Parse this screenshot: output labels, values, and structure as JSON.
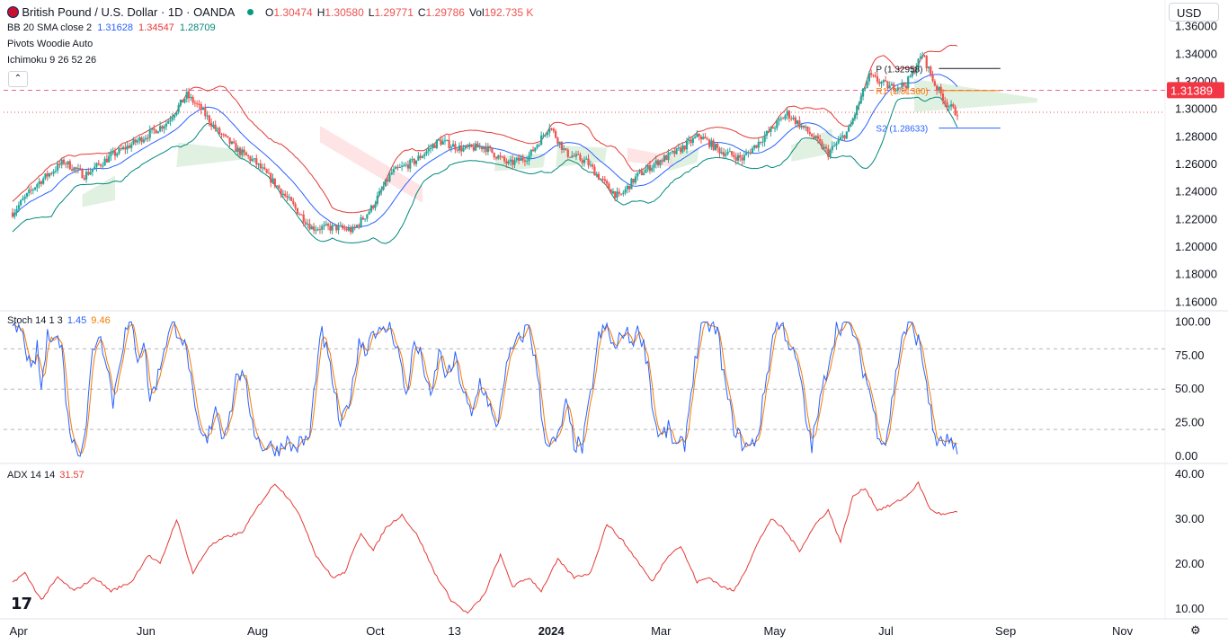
{
  "header": {
    "symbol": "British Pound / U.S. Dollar · 1D · OANDA",
    "ohlc": [
      {
        "k": "O",
        "v": "1.30474"
      },
      {
        "k": "H",
        "v": "1.30580"
      },
      {
        "k": "L",
        "v": "1.29771"
      },
      {
        "k": "C",
        "v": "1.29786"
      },
      {
        "k": "Vol",
        "v": "192.735 K"
      }
    ],
    "currency": "USD",
    "indicators": [
      {
        "label": "BB 20 SMA close 2",
        "values": [
          "1.31628",
          "1.34547",
          "1.28709"
        ],
        "colors": [
          "#2962ff",
          "#e53935",
          "#00897b"
        ]
      },
      {
        "label": "Pivots Woodie Auto",
        "values": [],
        "colors": []
      },
      {
        "label": "Ichimoku 9 26 52 26",
        "values": [],
        "colors": []
      }
    ]
  },
  "colors": {
    "up": "#26a69a",
    "down": "#ef5350",
    "basis": "#2962ff",
    "upper": "#e53935",
    "lower": "#00897b",
    "stoch_k": "#2962ff",
    "stoch_d": "#f57c00",
    "adx": "#e53935",
    "price_tag": "#f23645",
    "cloud_bull": "#c8e6c9",
    "cloud_bear": "#ffcdd2",
    "grid": "#b2b5be",
    "axis_text": "#131722"
  },
  "chart_data": [
    {
      "type": "candlestick",
      "title": "British Pound / U.S. Dollar · 1D · OANDA",
      "ylim": [
        1.155,
        1.365
      ],
      "yticks": [
        "1.16000",
        "1.18000",
        "1.20000",
        "1.22000",
        "1.24000",
        "1.26000",
        "1.28000",
        "1.30000",
        "1.32000",
        "1.34000",
        "1.36000"
      ],
      "anchors": [
        [
          0,
          1.225
        ],
        [
          12,
          1.246
        ],
        [
          25,
          1.262
        ],
        [
          35,
          1.252
        ],
        [
          48,
          1.266
        ],
        [
          62,
          1.278
        ],
        [
          75,
          1.29
        ],
        [
          85,
          1.31
        ],
        [
          92,
          1.3
        ],
        [
          100,
          1.284
        ],
        [
          110,
          1.27
        ],
        [
          118,
          1.262
        ],
        [
          128,
          1.246
        ],
        [
          138,
          1.228
        ],
        [
          146,
          1.214
        ],
        [
          158,
          1.214
        ],
        [
          166,
          1.212
        ],
        [
          175,
          1.228
        ],
        [
          185,
          1.254
        ],
        [
          196,
          1.262
        ],
        [
          208,
          1.277
        ],
        [
          220,
          1.271
        ],
        [
          230,
          1.273
        ],
        [
          242,
          1.26
        ],
        [
          252,
          1.266
        ],
        [
          262,
          1.288
        ],
        [
          270,
          1.268
        ],
        [
          280,
          1.262
        ],
        [
          290,
          1.244
        ],
        [
          296,
          1.236
        ],
        [
          305,
          1.252
        ],
        [
          315,
          1.262
        ],
        [
          325,
          1.27
        ],
        [
          335,
          1.281
        ],
        [
          345,
          1.27
        ],
        [
          356,
          1.264
        ],
        [
          368,
          1.282
        ],
        [
          378,
          1.297
        ],
        [
          390,
          1.281
        ],
        [
          398,
          1.268
        ],
        [
          408,
          1.285
        ],
        [
          418,
          1.324
        ],
        [
          428,
          1.316
        ],
        [
          436,
          1.318
        ],
        [
          444,
          1.34
        ],
        [
          450,
          1.318
        ],
        [
          456,
          1.304
        ],
        [
          460,
          1.298
        ]
      ],
      "ichimoku_cloud": {
        "bull": [
          [
            [
              34,
              50
            ],
            [
              1.229,
              1.234
            ],
            [
              1.238,
              1.252
            ]
          ],
          [
            [
              80,
              115
            ],
            [
              1.258,
              1.264
            ],
            [
              1.276,
              1.27
            ]
          ],
          [
            [
              235,
              260
            ],
            [
              1.255,
              1.258
            ],
            [
              1.266,
              1.268
            ]
          ],
          [
            [
              265,
              290
            ],
            [
              1.258,
              1.262
            ],
            [
              1.274,
              1.272
            ]
          ],
          [
            [
              320,
              335
            ],
            [
              1.255,
              1.262
            ],
            [
              1.266,
              1.272
            ]
          ],
          [
            [
              380,
              400
            ],
            [
              1.262,
              1.268
            ],
            [
              1.274,
              1.286
            ]
          ],
          [
            [
              440,
              500
            ],
            [
              1.298,
              1.305
            ],
            [
              1.322,
              1.308
            ]
          ]
        ],
        "bear": [
          [
            [
              150,
              200
            ],
            [
              1.276,
              1.232
            ],
            [
              1.288,
              1.244
            ]
          ],
          [
            [
              300,
              322
            ],
            [
              1.262,
              1.258
            ],
            [
              1.272,
              1.266
            ]
          ]
        ]
      },
      "pivots": [
        {
          "label": "P (1.32958)",
          "value": 1.32958,
          "color": "#131722"
        },
        {
          "label": "R1 (1.31360)",
          "value": 1.3136,
          "color": "#f57c00"
        },
        {
          "label": "S2 (1.28633)",
          "value": 1.28633,
          "color": "#2962ff"
        }
      ],
      "hlines": [
        {
          "value": 1.3138,
          "style": "dashed",
          "color": "#f06292"
        },
        {
          "value": 1.29786,
          "style": "dotted",
          "color": "#ef5350"
        }
      ],
      "price_tag": "1.31389",
      "price_tag_value": 1.31389
    },
    {
      "type": "line",
      "title": "Stoch 14 1 3",
      "legend": [
        {
          "name": "Stoch 14 1 3",
          "value": ""
        },
        {
          "name": "%K",
          "value": "1.45"
        },
        {
          "name": "%D",
          "value": "9.46"
        }
      ],
      "ylim": [
        -4,
        107
      ],
      "yticks": [
        "0.00",
        "25.00",
        "50.00",
        "75.00",
        "100.00"
      ],
      "bands": [
        20,
        50,
        80
      ],
      "anchors": [
        [
          0,
          92
        ],
        [
          3,
          96
        ],
        [
          6,
          85
        ],
        [
          9,
          60
        ],
        [
          12,
          80
        ],
        [
          14,
          50
        ],
        [
          17,
          88
        ],
        [
          20,
          94
        ],
        [
          24,
          80
        ],
        [
          27,
          28
        ],
        [
          30,
          8
        ],
        [
          33,
          4
        ],
        [
          36,
          25
        ],
        [
          39,
          78
        ],
        [
          42,
          92
        ],
        [
          46,
          72
        ],
        [
          49,
          40
        ],
        [
          52,
          70
        ],
        [
          55,
          92
        ],
        [
          58,
          98
        ],
        [
          61,
          74
        ],
        [
          64,
          86
        ],
        [
          67,
          42
        ],
        [
          71,
          60
        ],
        [
          74,
          82
        ],
        [
          78,
          98
        ],
        [
          82,
          92
        ],
        [
          86,
          70
        ],
        [
          89,
          30
        ],
        [
          92,
          15
        ],
        [
          95,
          10
        ],
        [
          99,
          40
        ],
        [
          102,
          16
        ],
        [
          106,
          30
        ],
        [
          110,
          65
        ],
        [
          114,
          50
        ],
        [
          118,
          20
        ],
        [
          121,
          8
        ],
        [
          125,
          8
        ],
        [
          129,
          4
        ],
        [
          133,
          12
        ],
        [
          137,
          6
        ],
        [
          141,
          10
        ],
        [
          145,
          14
        ],
        [
          148,
          62
        ],
        [
          151,
          92
        ],
        [
          154,
          72
        ],
        [
          157,
          50
        ],
        [
          160,
          20
        ],
        [
          163,
          36
        ],
        [
          166,
          52
        ],
        [
          169,
          88
        ],
        [
          172,
          78
        ],
        [
          176,
          96
        ],
        [
          180,
          90
        ],
        [
          184,
          98
        ],
        [
          188,
          80
        ],
        [
          192,
          45
        ],
        [
          196,
          84
        ],
        [
          200,
          72
        ],
        [
          204,
          40
        ],
        [
          208,
          78
        ],
        [
          212,
          58
        ],
        [
          216,
          72
        ],
        [
          220,
          48
        ],
        [
          224,
          28
        ],
        [
          228,
          56
        ],
        [
          232,
          42
        ],
        [
          236,
          18
        ],
        [
          240,
          60
        ],
        [
          244,
          80
        ],
        [
          248,
          88
        ],
        [
          252,
          98
        ],
        [
          256,
          62
        ],
        [
          259,
          20
        ],
        [
          262,
          8
        ],
        [
          266,
          12
        ],
        [
          270,
          38
        ],
        [
          274,
          10
        ],
        [
          278,
          6
        ],
        [
          282,
          45
        ],
        [
          286,
          88
        ],
        [
          290,
          96
        ],
        [
          294,
          78
        ],
        [
          298,
          94
        ],
        [
          302,
          86
        ],
        [
          306,
          94
        ],
        [
          310,
          70
        ],
        [
          313,
          28
        ],
        [
          316,
          14
        ],
        [
          320,
          20
        ],
        [
          324,
          6
        ],
        [
          328,
          10
        ],
        [
          332,
          60
        ],
        [
          336,
          96
        ],
        [
          340,
          98
        ],
        [
          344,
          92
        ],
        [
          348,
          50
        ],
        [
          352,
          22
        ],
        [
          356,
          10
        ],
        [
          360,
          6
        ],
        [
          364,
          18
        ],
        [
          368,
          60
        ],
        [
          372,
          98
        ],
        [
          376,
          96
        ],
        [
          380,
          80
        ],
        [
          384,
          62
        ],
        [
          387,
          28
        ],
        [
          390,
          8
        ],
        [
          394,
          40
        ],
        [
          398,
          70
        ],
        [
          402,
          96
        ],
        [
          406,
          98
        ],
        [
          410,
          94
        ],
        [
          414,
          70
        ],
        [
          418,
          50
        ],
        [
          422,
          20
        ],
        [
          426,
          10
        ],
        [
          430,
          50
        ],
        [
          434,
          90
        ],
        [
          438,
          98
        ],
        [
          442,
          86
        ],
        [
          446,
          56
        ],
        [
          449,
          20
        ],
        [
          452,
          8
        ],
        [
          456,
          12
        ],
        [
          459,
          5
        ],
        [
          461,
          1
        ]
      ]
    },
    {
      "type": "line",
      "title": "ADX 14 14",
      "legend": [
        {
          "name": "ADX 14 14",
          "value": ""
        },
        {
          "name": "ADX",
          "value": "31.57"
        }
      ],
      "ylim": [
        8,
        42
      ],
      "yticks": [
        "10.00",
        "20.00",
        "30.00",
        "40.00"
      ],
      "anchors": [
        [
          0,
          16
        ],
        [
          6,
          18
        ],
        [
          14,
          12
        ],
        [
          22,
          17
        ],
        [
          30,
          14
        ],
        [
          40,
          17
        ],
        [
          48,
          14
        ],
        [
          58,
          16
        ],
        [
          66,
          22
        ],
        [
          72,
          20
        ],
        [
          80,
          30
        ],
        [
          88,
          18
        ],
        [
          96,
          24
        ],
        [
          104,
          26
        ],
        [
          112,
          27
        ],
        [
          120,
          33
        ],
        [
          128,
          38
        ],
        [
          136,
          34
        ],
        [
          142,
          29
        ],
        [
          148,
          22
        ],
        [
          156,
          17
        ],
        [
          162,
          18
        ],
        [
          170,
          27
        ],
        [
          176,
          23
        ],
        [
          182,
          28
        ],
        [
          190,
          31
        ],
        [
          198,
          26
        ],
        [
          206,
          18
        ],
        [
          214,
          12
        ],
        [
          222,
          9
        ],
        [
          230,
          13
        ],
        [
          238,
          22
        ],
        [
          244,
          15
        ],
        [
          252,
          17
        ],
        [
          258,
          14
        ],
        [
          266,
          21
        ],
        [
          274,
          17
        ],
        [
          282,
          18
        ],
        [
          290,
          29
        ],
        [
          298,
          25
        ],
        [
          306,
          20
        ],
        [
          312,
          16
        ],
        [
          320,
          22
        ],
        [
          326,
          24
        ],
        [
          334,
          16
        ],
        [
          340,
          17
        ],
        [
          346,
          15
        ],
        [
          352,
          14
        ],
        [
          358,
          19
        ],
        [
          364,
          25
        ],
        [
          370,
          30
        ],
        [
          376,
          28
        ],
        [
          384,
          23
        ],
        [
          392,
          29
        ],
        [
          398,
          32
        ],
        [
          404,
          25
        ],
        [
          410,
          35
        ],
        [
          416,
          37
        ],
        [
          422,
          32
        ],
        [
          428,
          33
        ],
        [
          436,
          35
        ],
        [
          442,
          38
        ],
        [
          448,
          32
        ],
        [
          454,
          31
        ],
        [
          461,
          31.57
        ]
      ],
      "last_value": 31.57
    }
  ],
  "xaxis": {
    "labels": [
      {
        "i": 2,
        "t": "Apr"
      },
      {
        "i": 64,
        "t": "Jun"
      },
      {
        "i": 118,
        "t": "Aug"
      },
      {
        "i": 176,
        "t": "Oct"
      },
      {
        "i": 216,
        "t": "13"
      },
      {
        "i": 260,
        "t": "2024"
      },
      {
        "i": 315,
        "t": "Mar"
      },
      {
        "i": 370,
        "t": "May"
      },
      {
        "i": 426,
        "t": "Jul"
      },
      {
        "i": 483,
        "t": "Sep"
      },
      {
        "i": 540,
        "t": "Nov"
      }
    ]
  },
  "toolbar": {
    "logo": "TradingView"
  }
}
